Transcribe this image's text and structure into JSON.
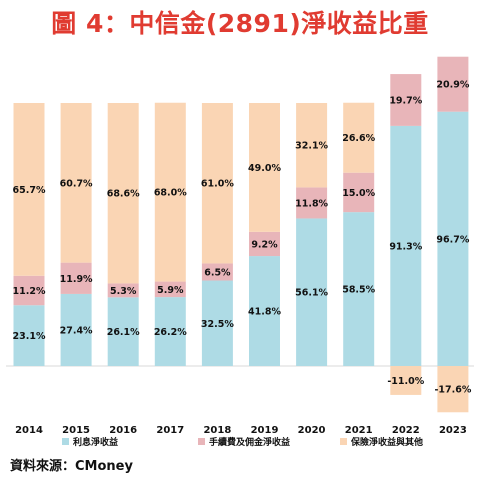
{
  "title": "圖 4：中信金(2891)淨收益比重",
  "source": "資料來源：CMoney",
  "colors": {
    "net_interest": "#aedbe5",
    "fees": "#e8b5b9",
    "insurance": "#fad5b4"
  },
  "chart_data": {
    "type": "bar",
    "stacked": true,
    "categories": [
      "2014",
      "2015",
      "2016",
      "2017",
      "2018",
      "2019",
      "2020",
      "2021",
      "2022",
      "2023"
    ],
    "series": [
      {
        "name": "利息淨收益",
        "values": [
          23.1,
          27.4,
          26.1,
          26.2,
          32.5,
          41.8,
          56.1,
          58.5,
          91.3,
          96.7
        ]
      },
      {
        "name": "手續費及佣金淨收益",
        "values": [
          11.2,
          11.9,
          5.3,
          5.9,
          6.5,
          9.2,
          11.8,
          15.0,
          19.7,
          20.9
        ]
      },
      {
        "name": "保險淨收益與其他",
        "values": [
          65.7,
          60.7,
          68.6,
          68.0,
          61.0,
          49.0,
          32.1,
          26.6,
          -11.0,
          -17.6
        ]
      }
    ],
    "value_format": "0.0%",
    "ylim": [
      -24,
      120
    ],
    "grid": false,
    "legend": "bottom"
  }
}
